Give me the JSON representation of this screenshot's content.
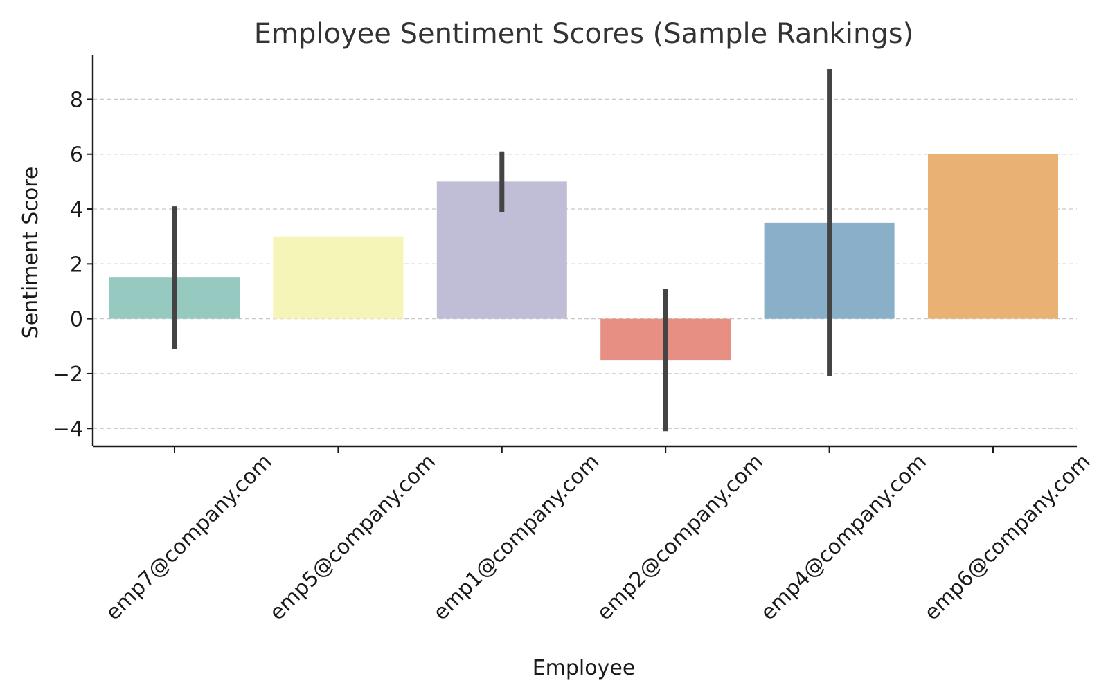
{
  "chart_data": {
    "type": "bar",
    "title": "Employee Sentiment Scores (Sample Rankings)",
    "xlabel": "Employee",
    "ylabel": "Sentiment Score",
    "categories": [
      "emp7@company.com",
      "emp5@company.com",
      "emp1@company.com",
      "emp2@company.com",
      "emp4@company.com",
      "emp6@company.com"
    ],
    "values": [
      1.5,
      3.0,
      5.0,
      -1.5,
      3.5,
      6.0
    ],
    "error_low": [
      -1.1,
      null,
      3.9,
      -4.1,
      -2.1,
      null
    ],
    "error_high": [
      4.1,
      null,
      6.1,
      1.1,
      9.1,
      null
    ],
    "colors": [
      "#96c9bf",
      "#f6f5b8",
      "#c0bdd6",
      "#e88f84",
      "#8aafc8",
      "#e9b273"
    ],
    "yticks": [
      -4,
      -2,
      0,
      2,
      4,
      6,
      8
    ],
    "ytick_labels": [
      "−4",
      "−2",
      "0",
      "2",
      "4",
      "6",
      "8"
    ],
    "ylim": [
      -4.65,
      9.6
    ],
    "grid": "y-dashed",
    "legend": "none"
  }
}
